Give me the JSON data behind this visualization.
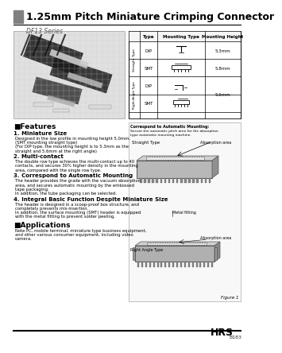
{
  "title": "1.25mm Pitch Miniature Crimping Connector",
  "subtitle": "DF13 Series",
  "bg_color": "#ffffff",
  "header_bar_color": "#808080",
  "footer_brand": "HRS",
  "footer_part": "B183",
  "features_title": "■Features",
  "features": [
    [
      "1. Miniature Size",
      "Designed in the low profile in mounting height 5.0mm.\n(SMT mounting straight type)\n(For DIP type, the mounting height is to 5.3mm as the\nstraight and 5.6mm at the right angle)"
    ],
    [
      "2. Multi-contact",
      "The double row type achieves the multi-contact up to 40\ncontacts, and secures 30% higher density in the mounting\narea, compared with the single row type."
    ],
    [
      "3. Correspond to Automatic Mounting",
      "The header provides the grade with the vacuum absorption\narea, and secures automatic mounting by the embossed\ntape packaging.\nIn addition, the tube packaging can be selected."
    ],
    [
      "4. Integral Basic Function Despite Miniature Size",
      "The header is designed in a scoop-proof box structure, and\ncompletely prevents mis-insertion.\nIn addition, the surface mounting (SMT) header is equipped\nwith the metal fitting to prevent solder peeling."
    ]
  ],
  "applications_title": "■Applications",
  "applications_text": "Note PC, mobile terminal, miniature type business equipment,\nand other various consumer equipment, including video\ncamera.",
  "table_header": [
    "Type",
    "Mounting Type",
    "Mounting Height"
  ],
  "row_types": [
    "DIP",
    "SMT",
    "DIP",
    "SMT"
  ],
  "mounting_heights": [
    "5.3mm",
    "5.8mm",
    "5.6mm"
  ],
  "side_labels": [
    "Straight Type",
    "Right-Angle Type"
  ],
  "fig_note1": "Correspond to Automatic Mounting:",
  "fig_note2": "Secure the automatic pitch area for the absorption\ntype automatic mounting machine.",
  "fig_label_straight": "Straight Type",
  "fig_label_absorption1": "Absorption area",
  "fig_label_metal": "Metal fitting",
  "fig_label_right": "Right Angle Type",
  "fig_label_absorption2": "Absorption area",
  "figure_caption": "Figure 1"
}
